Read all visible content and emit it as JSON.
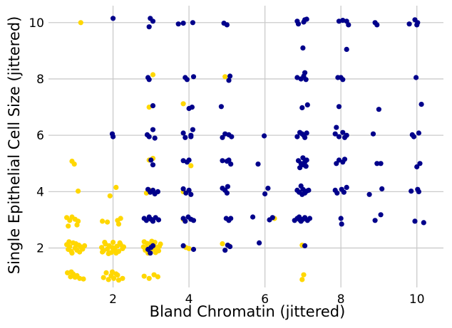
{
  "chart_data": {
    "type": "scatter",
    "title": "",
    "xlabel": "Bland Chromatin (jittered)",
    "ylabel": "Single Epithelial Cell Size (jittered)",
    "xlim": [
      0.3,
      10.7
    ],
    "ylim": [
      0.6,
      10.6
    ],
    "xticks": [
      2,
      4,
      6,
      8,
      10
    ],
    "yticks": [
      2,
      4,
      6,
      8,
      10
    ],
    "grid": true,
    "background": "#ffffff",
    "series": [
      {
        "color": "#ffd700",
        "points": [
          [
            1.15,
            10.0
          ],
          [
            3.05,
            8.15
          ],
          [
            4.95,
            8.08
          ],
          [
            2.95,
            7.0
          ],
          [
            3.85,
            7.12
          ],
          [
            2.95,
            5.12
          ],
          [
            3.05,
            5.18
          ],
          [
            0.92,
            5.08
          ],
          [
            0.98,
            4.98
          ],
          [
            2.08,
            4.15
          ],
          [
            1.92,
            3.85
          ],
          [
            1.08,
            4.02
          ],
          [
            2.88,
            3.95
          ],
          [
            2.96,
            4.05
          ],
          [
            3.85,
            4.0
          ],
          [
            4.05,
            4.92
          ],
          [
            6.25,
            3.05
          ],
          [
            3.85,
            3.02
          ],
          [
            3.92,
            2.02
          ],
          [
            4.0,
            1.98
          ],
          [
            4.88,
            2.15
          ],
          [
            5.05,
            2.08
          ],
          [
            6.98,
            0.88
          ],
          [
            7.02,
            1.05
          ],
          [
            6.98,
            2.1
          ],
          [
            0.78,
            3.08
          ],
          [
            0.86,
            2.98
          ],
          [
            0.92,
            3.1
          ],
          [
            1.0,
            3.02
          ],
          [
            1.08,
            2.95
          ],
          [
            0.82,
            2.78
          ],
          [
            1.05,
            2.82
          ],
          [
            1.72,
            2.95
          ],
          [
            1.85,
            2.92
          ],
          [
            2.12,
            2.98
          ],
          [
            2.2,
            3.05
          ],
          [
            2.15,
            2.85
          ],
          [
            0.78,
            2.12
          ],
          [
            0.82,
            1.95
          ],
          [
            0.86,
            2.05
          ],
          [
            0.9,
            1.88
          ],
          [
            0.95,
            2.18
          ],
          [
            1.0,
            2.0
          ],
          [
            1.05,
            1.92
          ],
          [
            1.1,
            2.1
          ],
          [
            1.15,
            2.04
          ],
          [
            1.2,
            1.96
          ],
          [
            1.25,
            2.08
          ],
          [
            0.84,
            2.22
          ],
          [
            0.92,
            1.82
          ],
          [
            1.02,
            2.15
          ],
          [
            1.12,
            1.86
          ],
          [
            1.7,
            2.02
          ],
          [
            1.75,
            1.9
          ],
          [
            1.8,
            2.14
          ],
          [
            1.85,
            1.96
          ],
          [
            1.9,
            2.08
          ],
          [
            1.95,
            1.84
          ],
          [
            2.0,
            2.2
          ],
          [
            2.05,
            1.92
          ],
          [
            2.1,
            2.06
          ],
          [
            2.15,
            1.88
          ],
          [
            2.2,
            2.12
          ],
          [
            2.25,
            1.98
          ],
          [
            1.78,
            2.2
          ],
          [
            1.88,
            1.8
          ],
          [
            1.98,
            2.02
          ],
          [
            2.08,
            1.82
          ],
          [
            2.18,
            2.18
          ],
          [
            2.28,
            2.04
          ],
          [
            1.72,
            1.86
          ],
          [
            2.02,
            1.94
          ],
          [
            2.8,
            2.04
          ],
          [
            2.85,
            1.92
          ],
          [
            2.9,
            2.16
          ],
          [
            2.95,
            1.86
          ],
          [
            3.0,
            2.1
          ],
          [
            3.05,
            1.96
          ],
          [
            3.1,
            2.2
          ],
          [
            3.15,
            2.02
          ],
          [
            3.2,
            1.9
          ],
          [
            3.25,
            2.14
          ],
          [
            2.82,
            2.22
          ],
          [
            2.92,
            1.82
          ],
          [
            3.02,
            2.24
          ],
          [
            3.12,
            1.84
          ],
          [
            3.22,
            2.06
          ],
          [
            2.88,
            2.0
          ],
          [
            3.08,
            2.08
          ],
          [
            3.18,
            1.98
          ],
          [
            0.8,
            1.12
          ],
          [
            0.88,
            0.98
          ],
          [
            0.95,
            1.08
          ],
          [
            1.05,
            1.02
          ],
          [
            1.12,
            0.92
          ],
          [
            1.22,
            0.9
          ],
          [
            0.9,
            1.15
          ],
          [
            1.0,
            0.96
          ],
          [
            1.75,
            0.95
          ],
          [
            1.82,
            1.12
          ],
          [
            1.88,
            0.88
          ],
          [
            1.95,
            1.02
          ],
          [
            2.02,
            0.92
          ],
          [
            2.08,
            1.08
          ],
          [
            2.15,
            0.86
          ],
          [
            2.25,
            0.92
          ],
          [
            1.98,
            1.15
          ],
          [
            2.12,
            1.04
          ],
          [
            2.82,
            1.0
          ],
          [
            2.95,
            0.92
          ],
          [
            3.08,
            1.05
          ],
          [
            3.18,
            0.98
          ]
        ]
      },
      {
        "color": "#00008b",
        "points": [
          [
            2.0,
            10.15
          ],
          [
            2.98,
            10.15
          ],
          [
            3.05,
            10.05
          ],
          [
            2.95,
            9.85
          ],
          [
            3.72,
            9.95
          ],
          [
            3.85,
            9.98
          ],
          [
            4.1,
            10.0
          ],
          [
            4.92,
            9.98
          ],
          [
            5.0,
            9.92
          ],
          [
            6.85,
            10.05
          ],
          [
            6.88,
            9.95
          ],
          [
            7.05,
            10.1
          ],
          [
            7.1,
            10.12
          ],
          [
            7.02,
            10.02
          ],
          [
            7.95,
            10.05
          ],
          [
            8.05,
            10.08
          ],
          [
            8.15,
            10.05
          ],
          [
            8.2,
            9.92
          ],
          [
            8.9,
            10.0
          ],
          [
            8.95,
            9.92
          ],
          [
            9.8,
            9.95
          ],
          [
            9.95,
            10.1
          ],
          [
            10.0,
            9.92
          ],
          [
            10.02,
            10.0
          ],
          [
            7.0,
            9.1
          ],
          [
            8.15,
            9.05
          ],
          [
            2.92,
            8.05
          ],
          [
            2.95,
            7.98
          ],
          [
            3.9,
            8.05
          ],
          [
            4.12,
            8.08
          ],
          [
            3.95,
            7.98
          ],
          [
            5.05,
            7.95
          ],
          [
            5.08,
            8.1
          ],
          [
            6.85,
            8.05
          ],
          [
            6.95,
            8.0
          ],
          [
            7.02,
            8.1
          ],
          [
            7.08,
            7.98
          ],
          [
            7.05,
            8.22
          ],
          [
            7.92,
            8.05
          ],
          [
            8.0,
            8.05
          ],
          [
            8.05,
            7.98
          ],
          [
            9.98,
            8.05
          ],
          [
            3.05,
            7.05
          ],
          [
            4.0,
            6.95
          ],
          [
            4.08,
            7.0
          ],
          [
            4.85,
            7.02
          ],
          [
            6.98,
            6.98
          ],
          [
            7.12,
            7.08
          ],
          [
            7.95,
            7.02
          ],
          [
            9.0,
            6.92
          ],
          [
            10.12,
            7.1
          ],
          [
            1.98,
            6.05
          ],
          [
            2.0,
            5.95
          ],
          [
            2.9,
            6.02
          ],
          [
            2.95,
            5.95
          ],
          [
            3.05,
            6.2
          ],
          [
            3.1,
            5.9
          ],
          [
            3.85,
            6.08
          ],
          [
            3.9,
            5.92
          ],
          [
            4.05,
            6.0
          ],
          [
            4.1,
            6.2
          ],
          [
            4.05,
            5.95
          ],
          [
            4.88,
            5.92
          ],
          [
            4.95,
            6.05
          ],
          [
            5.05,
            6.02
          ],
          [
            5.12,
            5.95
          ],
          [
            5.98,
            5.98
          ],
          [
            6.85,
            5.95
          ],
          [
            6.92,
            6.1
          ],
          [
            6.98,
            6.05
          ],
          [
            7.05,
            5.92
          ],
          [
            7.1,
            6.08
          ],
          [
            7.02,
            6.0
          ],
          [
            7.85,
            6.05
          ],
          [
            7.88,
            6.28
          ],
          [
            7.95,
            5.95
          ],
          [
            8.05,
            6.1
          ],
          [
            8.1,
            5.92
          ],
          [
            8.15,
            6.0
          ],
          [
            8.85,
            6.05
          ],
          [
            9.88,
            6.02
          ],
          [
            9.92,
            5.95
          ],
          [
            10.05,
            6.08
          ],
          [
            3.0,
            5.12
          ],
          [
            3.05,
            4.95
          ],
          [
            3.85,
            5.1
          ],
          [
            3.95,
            5.05
          ],
          [
            4.0,
            5.12
          ],
          [
            4.88,
            5.1
          ],
          [
            5.0,
            5.08
          ],
          [
            5.05,
            5.12
          ],
          [
            5.1,
            4.98
          ],
          [
            5.82,
            4.98
          ],
          [
            6.88,
            5.1
          ],
          [
            6.95,
            5.0
          ],
          [
            7.0,
            5.2
          ],
          [
            7.05,
            5.05
          ],
          [
            7.1,
            5.12
          ],
          [
            7.02,
            4.95
          ],
          [
            7.08,
            4.9
          ],
          [
            6.92,
            4.85
          ],
          [
            7.88,
            5.0
          ],
          [
            7.95,
            5.12
          ],
          [
            8.05,
            5.05
          ],
          [
            8.1,
            5.15
          ],
          [
            8.95,
            5.0
          ],
          [
            9.05,
            5.0
          ],
          [
            10.0,
            4.88
          ],
          [
            10.08,
            5.0
          ],
          [
            2.92,
            4.08
          ],
          [
            2.98,
            3.98
          ],
          [
            3.05,
            4.05
          ],
          [
            3.1,
            3.92
          ],
          [
            3.18,
            4.0
          ],
          [
            3.85,
            4.1
          ],
          [
            3.92,
            3.95
          ],
          [
            4.0,
            4.05
          ],
          [
            4.05,
            3.9
          ],
          [
            4.88,
            4.12
          ],
          [
            4.95,
            4.05
          ],
          [
            5.02,
            4.18
          ],
          [
            5.0,
            3.95
          ],
          [
            6.0,
            3.92
          ],
          [
            6.08,
            4.12
          ],
          [
            6.85,
            4.05
          ],
          [
            6.9,
            3.98
          ],
          [
            6.95,
            4.2
          ],
          [
            7.0,
            4.08
          ],
          [
            7.05,
            3.95
          ],
          [
            7.1,
            4.02
          ],
          [
            7.15,
            4.05
          ],
          [
            6.98,
            3.9
          ],
          [
            7.85,
            4.05
          ],
          [
            7.9,
            3.95
          ],
          [
            8.02,
            4.08
          ],
          [
            8.08,
            3.98
          ],
          [
            8.15,
            4.15
          ],
          [
            8.75,
            3.9
          ],
          [
            9.08,
            4.1
          ],
          [
            9.85,
            4.02
          ],
          [
            10.02,
            4.08
          ],
          [
            10.05,
            4.0
          ],
          [
            2.82,
            3.05
          ],
          [
            2.88,
            2.98
          ],
          [
            2.95,
            3.1
          ],
          [
            3.0,
            3.02
          ],
          [
            3.05,
            2.95
          ],
          [
            3.12,
            3.08
          ],
          [
            3.2,
            3.0
          ],
          [
            3.85,
            3.05
          ],
          [
            3.9,
            2.95
          ],
          [
            3.98,
            3.1
          ],
          [
            4.05,
            3.02
          ],
          [
            4.12,
            2.98
          ],
          [
            4.98,
            3.05
          ],
          [
            5.05,
            2.98
          ],
          [
            5.1,
            3.05
          ],
          [
            5.68,
            3.1
          ],
          [
            6.12,
            3.0
          ],
          [
            6.2,
            3.08
          ],
          [
            6.78,
            2.98
          ],
          [
            6.85,
            3.05
          ],
          [
            6.9,
            3.1
          ],
          [
            6.95,
            2.95
          ],
          [
            7.0,
            3.02
          ],
          [
            7.05,
            3.08
          ],
          [
            7.12,
            2.98
          ],
          [
            7.18,
            3.05
          ],
          [
            6.92,
            3.0
          ],
          [
            8.0,
            3.05
          ],
          [
            8.02,
            2.85
          ],
          [
            8.9,
            2.98
          ],
          [
            9.05,
            3.18
          ],
          [
            9.95,
            2.95
          ],
          [
            10.18,
            2.9
          ],
          [
            2.92,
            1.95
          ],
          [
            3.0,
            2.02
          ],
          [
            2.98,
            1.82
          ],
          [
            3.05,
            2.08
          ],
          [
            3.85,
            2.08
          ],
          [
            4.12,
            1.95
          ],
          [
            4.95,
            1.92
          ],
          [
            5.08,
            2.05
          ],
          [
            5.02,
            2.1
          ],
          [
            5.85,
            2.18
          ],
          [
            7.05,
            2.08
          ]
        ]
      }
    ]
  }
}
